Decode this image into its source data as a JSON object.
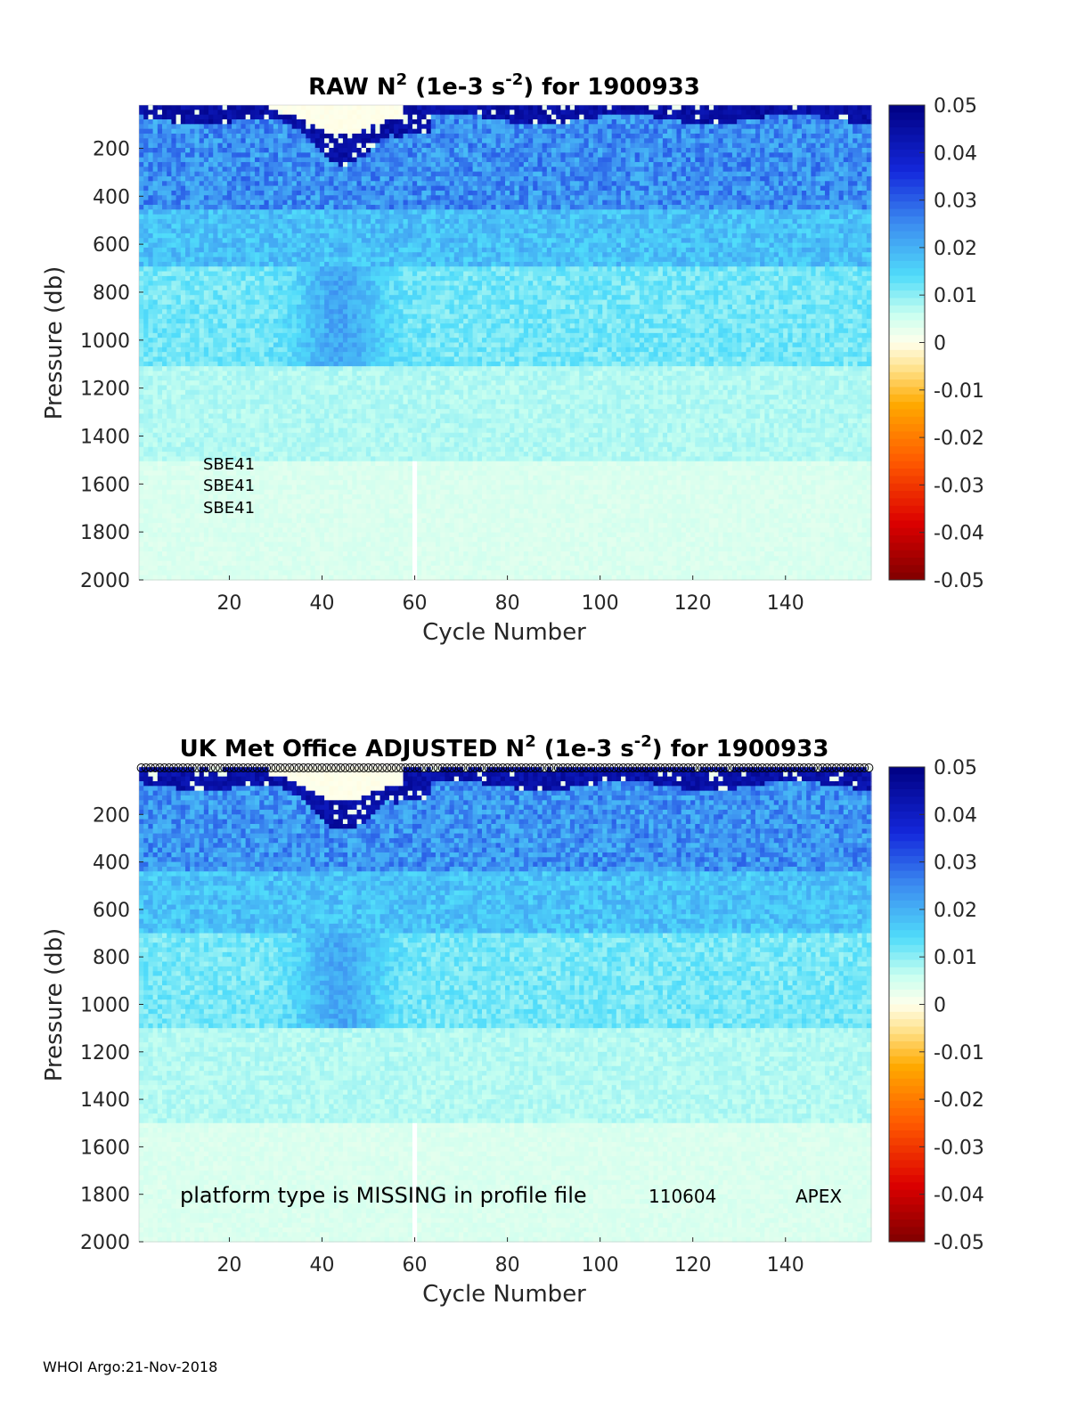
{
  "footer": "WHOI Argo:21-Nov-2018",
  "colorbar": {
    "ticks": [
      "0.05",
      "0.04",
      "0.03",
      "0.02",
      "0.01",
      "0",
      "-0.01",
      "-0.02",
      "-0.03",
      "-0.04",
      "-0.05"
    ],
    "range": [
      -0.05,
      0.05
    ],
    "colormap": "jet-with-white-center"
  },
  "chart_data": [
    {
      "type": "heatmap",
      "title_parts": [
        "RAW N",
        "2",
        " (1e-3 s",
        "-2",
        ") for 1900933"
      ],
      "xlabel": "Cycle Number",
      "ylabel": "Pressure (db)",
      "xlim": [
        1,
        158
      ],
      "ylim": [
        2000,
        20
      ],
      "y_reversed": true,
      "x_ticks": [
        "20",
        "40",
        "60",
        "80",
        "100",
        "120",
        "140"
      ],
      "y_ticks": [
        "200",
        "400",
        "600",
        "800",
        "1000",
        "1200",
        "1400",
        "1600",
        "1800",
        "2000"
      ],
      "clim": [
        -0.05,
        0.05
      ],
      "annotations": [
        "SBE41",
        "SBE41",
        "SBE41"
      ],
      "missing_cycle": 60
    },
    {
      "type": "heatmap",
      "title_parts": [
        "UK Met Office  ADJUSTED N",
        "2",
        " (1e-3 s",
        "-2",
        ") for 1900933"
      ],
      "xlabel": "Cycle Number",
      "ylabel": "Pressure (db)",
      "xlim": [
        1,
        158
      ],
      "ylim": [
        2000,
        0
      ],
      "y_reversed": true,
      "x_ticks": [
        "20",
        "40",
        "60",
        "80",
        "100",
        "120",
        "140"
      ],
      "y_ticks": [
        "200",
        "400",
        "600",
        "800",
        "1000",
        "1200",
        "1400",
        "1600",
        "1800",
        "2000"
      ],
      "clim": [
        -0.05,
        0.05
      ],
      "annotations": [
        "platform type is MISSING in profile file",
        "110604",
        "APEX"
      ],
      "missing_cycle": 60,
      "surface_markers": "open circles along top for each cycle"
    }
  ]
}
